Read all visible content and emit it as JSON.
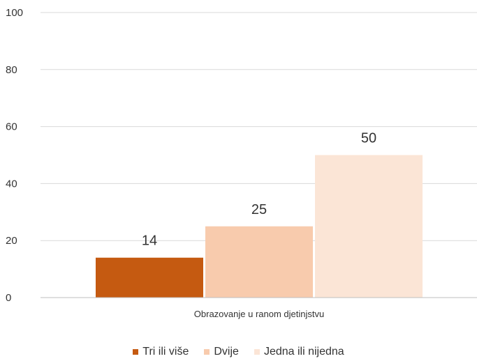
{
  "chart_data": {
    "type": "bar",
    "title": "",
    "xlabel": "",
    "ylabel": "",
    "categories": [
      "Obrazovanje u ranom djetinjstvu"
    ],
    "series": [
      {
        "name": "Tri ili više",
        "values": [
          14
        ],
        "color": "#c55a11"
      },
      {
        "name": "Dvije",
        "values": [
          25
        ],
        "color": "#f8cbad"
      },
      {
        "name": "Jedna ili nijedna",
        "values": [
          50
        ],
        "color": "#fbe5d6"
      }
    ],
    "y_ticks": [
      "0",
      "20",
      "40",
      "60",
      "80",
      "100"
    ],
    "ylim": [
      0,
      100
    ],
    "grid": true,
    "legend_position": "bottom"
  }
}
